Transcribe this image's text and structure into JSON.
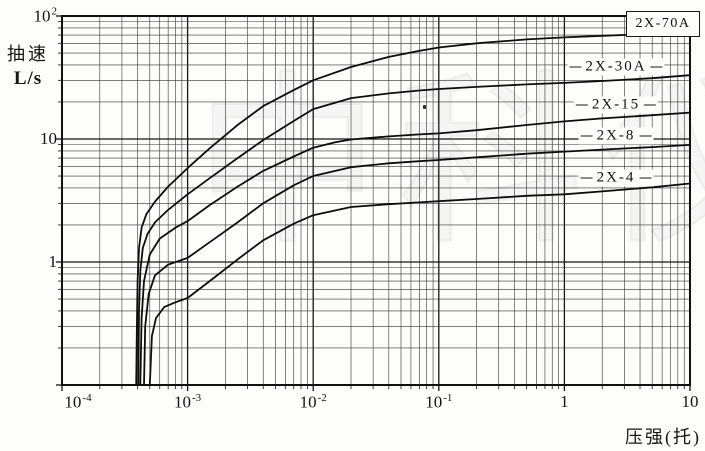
{
  "watermark": {
    "text": "中科仪"
  },
  "chart_data": {
    "type": "line",
    "title": "",
    "description": "Pumping speed vs pressure curves for 2X series rotary vane vacuum pumps, log-log grid",
    "x_axis": {
      "title": "压强(托)",
      "scale": "log",
      "min": 0.0001,
      "max": 10,
      "ticks": [
        {
          "base": "10",
          "exp": "-4",
          "value": 0.0001
        },
        {
          "base": "10",
          "exp": "-3",
          "value": 0.001
        },
        {
          "base": "10",
          "exp": "-2",
          "value": 0.01
        },
        {
          "base": "10",
          "exp": "-1",
          "value": 0.1
        },
        {
          "base": "1",
          "exp": "",
          "value": 1
        },
        {
          "base": "10",
          "exp": "",
          "value": 10
        }
      ]
    },
    "y_axis": {
      "title_line1": "抽速",
      "title_line2": "L/s",
      "scale": "log",
      "min": 0.1,
      "max": 100,
      "ticks": [
        {
          "base": "10",
          "exp": "2",
          "value": 100
        },
        {
          "base": "10",
          "exp": "",
          "value": 10
        },
        {
          "base": "1",
          "exp": "",
          "value": 1
        }
      ]
    },
    "grid": {
      "minor_log_lines": true,
      "line_color": "#333333",
      "major_color": "#161616"
    },
    "series": [
      {
        "name": "2X-70A",
        "boxed_label": true,
        "points": [
          [
            0.00039,
            0.1
          ],
          [
            0.000395,
            0.3
          ],
          [
            0.0004,
            0.7
          ],
          [
            0.00041,
            1.3
          ],
          [
            0.00043,
            1.9
          ],
          [
            0.00047,
            2.45
          ],
          [
            0.00055,
            3.1
          ],
          [
            0.0007,
            4.1
          ],
          [
            0.001,
            5.8
          ],
          [
            0.0015,
            8.4
          ],
          [
            0.0025,
            13
          ],
          [
            0.004,
            18.5
          ],
          [
            0.007,
            25
          ],
          [
            0.01,
            30
          ],
          [
            0.02,
            38.5
          ],
          [
            0.04,
            46.5
          ],
          [
            0.07,
            52
          ],
          [
            0.1,
            55.5
          ],
          [
            0.2,
            60
          ],
          [
            0.5,
            64.5
          ],
          [
            1,
            67
          ],
          [
            2,
            69
          ],
          [
            5,
            71.5
          ],
          [
            10,
            73.5
          ]
        ]
      },
      {
        "name": "2X-30A",
        "boxed_label": false,
        "points": [
          [
            0.000405,
            0.1
          ],
          [
            0.00041,
            0.4
          ],
          [
            0.00042,
            0.85
          ],
          [
            0.00044,
            1.3
          ],
          [
            0.00048,
            1.7
          ],
          [
            0.00055,
            2.1
          ],
          [
            0.0007,
            2.65
          ],
          [
            0.001,
            3.55
          ],
          [
            0.0015,
            4.8
          ],
          [
            0.0025,
            7
          ],
          [
            0.004,
            9.8
          ],
          [
            0.007,
            14
          ],
          [
            0.01,
            17.5
          ],
          [
            0.02,
            21.5
          ],
          [
            0.04,
            23.5
          ],
          [
            0.07,
            24.8
          ],
          [
            0.1,
            25.5
          ],
          [
            0.2,
            26.5
          ],
          [
            0.5,
            27.8
          ],
          [
            1,
            28.6
          ],
          [
            2,
            29.6
          ],
          [
            5,
            31.2
          ],
          [
            10,
            33
          ]
        ]
      },
      {
        "name": "2X-15",
        "boxed_label": false,
        "points": [
          [
            0.00042,
            0.1
          ],
          [
            0.00043,
            0.35
          ],
          [
            0.00045,
            0.7
          ],
          [
            0.0005,
            1.15
          ],
          [
            0.0006,
            1.55
          ],
          [
            0.0008,
            1.9
          ],
          [
            0.001,
            2.15
          ],
          [
            0.0015,
            2.9
          ],
          [
            0.0025,
            4.1
          ],
          [
            0.004,
            5.5
          ],
          [
            0.007,
            7.2
          ],
          [
            0.01,
            8.5
          ],
          [
            0.015,
            9.4
          ],
          [
            0.02,
            9.9
          ],
          [
            0.04,
            10.5
          ],
          [
            0.07,
            10.9
          ],
          [
            0.1,
            11.1
          ],
          [
            0.2,
            11.8
          ],
          [
            0.5,
            13
          ],
          [
            1,
            13.9
          ],
          [
            2,
            14.7
          ],
          [
            5,
            15.6
          ],
          [
            10,
            16.4
          ]
        ]
      },
      {
        "name": "2X-8",
        "boxed_label": false,
        "points": [
          [
            0.00045,
            0.1
          ],
          [
            0.00046,
            0.3
          ],
          [
            0.00049,
            0.55
          ],
          [
            0.00055,
            0.78
          ],
          [
            0.0007,
            0.95
          ],
          [
            0.001,
            1.08
          ],
          [
            0.0015,
            1.45
          ],
          [
            0.0025,
            2.1
          ],
          [
            0.004,
            3
          ],
          [
            0.007,
            4.2
          ],
          [
            0.01,
            5
          ],
          [
            0.02,
            5.9
          ],
          [
            0.04,
            6.35
          ],
          [
            0.07,
            6.6
          ],
          [
            0.1,
            6.75
          ],
          [
            0.2,
            7.1
          ],
          [
            0.5,
            7.6
          ],
          [
            1,
            7.9
          ],
          [
            2,
            8.2
          ],
          [
            5,
            8.6
          ],
          [
            10,
            8.95
          ]
        ]
      },
      {
        "name": "2X-4",
        "boxed_label": false,
        "points": [
          [
            0.0005,
            0.1
          ],
          [
            0.00052,
            0.25
          ],
          [
            0.00056,
            0.35
          ],
          [
            0.00065,
            0.43
          ],
          [
            0.0008,
            0.47
          ],
          [
            0.001,
            0.51
          ],
          [
            0.0015,
            0.7
          ],
          [
            0.0025,
            1.05
          ],
          [
            0.004,
            1.5
          ],
          [
            0.007,
            2.05
          ],
          [
            0.01,
            2.4
          ],
          [
            0.02,
            2.8
          ],
          [
            0.04,
            2.95
          ],
          [
            0.07,
            3.05
          ],
          [
            0.1,
            3.12
          ],
          [
            0.2,
            3.25
          ],
          [
            0.5,
            3.45
          ],
          [
            1,
            3.55
          ],
          [
            2,
            3.75
          ],
          [
            5,
            4.05
          ],
          [
            10,
            4.35
          ]
        ]
      }
    ],
    "legend_position": "labels-on-plot-right"
  }
}
